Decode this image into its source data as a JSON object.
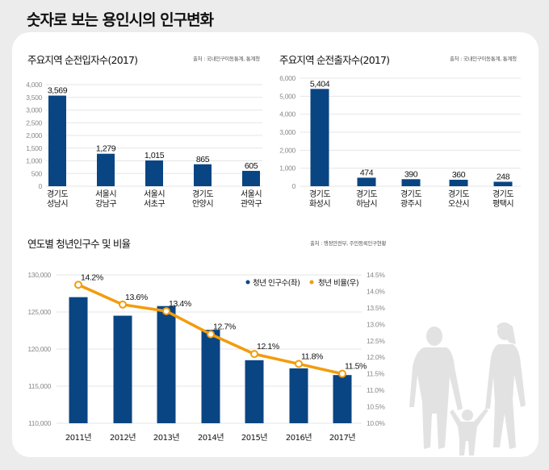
{
  "page": {
    "title": "숫자로 보는 용인시의 인구변화"
  },
  "colors": {
    "bar": "#0a4583",
    "line": "#f29c0c",
    "grid": "#e6e6e6",
    "background": "#ececec",
    "card": "#ffffff",
    "silhouette": "#e2e2e2"
  },
  "chart_data": [
    {
      "type": "bar",
      "title": "주요지역 순전입자수(2017)",
      "source": "출처 : 국내인구이동통계, 통계청",
      "categories": [
        [
          "경기도",
          "성남시"
        ],
        [
          "서울시",
          "강남구"
        ],
        [
          "서울시",
          "서초구"
        ],
        [
          "경기도",
          "안양시"
        ],
        [
          "서울시",
          "관악구"
        ]
      ],
      "values": [
        3569,
        1279,
        1015,
        865,
        605
      ],
      "value_labels": [
        "3,569",
        "1,279",
        "1,015",
        "865",
        "605"
      ],
      "yticks": [
        "0",
        "500",
        "1,000",
        "1,500",
        "2,000",
        "2,500",
        "3,000",
        "3,500",
        "4,000"
      ],
      "ytick_values": [
        0,
        500,
        1000,
        1500,
        2000,
        2500,
        3000,
        3500,
        4000
      ],
      "ylim": [
        0,
        4000
      ],
      "grid": true,
      "xlabel": "",
      "ylabel": ""
    },
    {
      "type": "bar",
      "title": "주요지역 순전출자수(2017)",
      "source": "출처 : 국내인구이동통계, 통계청",
      "categories": [
        [
          "경기도",
          "화성시"
        ],
        [
          "경기도",
          "하남시"
        ],
        [
          "경기도",
          "광주시"
        ],
        [
          "경기도",
          "오산시"
        ],
        [
          "경기도",
          "평택시"
        ]
      ],
      "values": [
        5404,
        474,
        390,
        360,
        248
      ],
      "value_labels": [
        "5,404",
        "474",
        "390",
        "360",
        "248"
      ],
      "yticks": [
        "0",
        "1,000",
        "2,000",
        "3,000",
        "4,000",
        "5,000",
        "6,000"
      ],
      "ytick_values": [
        0,
        1000,
        2000,
        3000,
        4000,
        5000,
        6000
      ],
      "ylim": [
        0,
        6000
      ],
      "grid": true,
      "xlabel": "",
      "ylabel": ""
    },
    {
      "type": "bar+line",
      "title": "연도별 청년인구수 및 비율",
      "source": "출처 : 행정안전부, 주민등록인구현황",
      "categories": [
        "2011년",
        "2012년",
        "2013년",
        "2014년",
        "2015년",
        "2016년",
        "2017년"
      ],
      "series": [
        {
          "name": "청년 인구수(좌)",
          "type": "bar",
          "axis": "left",
          "values": [
            127000,
            124500,
            125800,
            122600,
            118500,
            117400,
            116500
          ]
        },
        {
          "name": "청년 비율(우)",
          "type": "line",
          "axis": "right",
          "values": [
            14.2,
            13.6,
            13.4,
            12.7,
            12.1,
            11.8,
            11.5
          ],
          "value_labels": [
            "14.2%",
            "13.6%",
            "13.4%",
            "12.7%",
            "12.1%",
            "11.8%",
            "11.5%"
          ]
        }
      ],
      "left_axis": {
        "ticks": [
          "110,000",
          "115,000",
          "120,000",
          "125,000",
          "130,000"
        ],
        "tick_values": [
          110000,
          115000,
          120000,
          125000,
          130000
        ],
        "ylim": [
          110000,
          130000
        ]
      },
      "right_axis": {
        "ticks": [
          "10.0%",
          "10.5%",
          "11.0%",
          "11.5%",
          "12.0%",
          "12.5%",
          "13.0%",
          "13.5%",
          "14.0%",
          "14.5%"
        ],
        "tick_values": [
          10.0,
          10.5,
          11.0,
          11.5,
          12.0,
          12.5,
          13.0,
          13.5,
          14.0,
          14.5
        ],
        "ylim": [
          10.0,
          14.5
        ]
      },
      "legend": {
        "position": "top-right",
        "items": [
          "청년 인구수(좌)",
          "청년 비율(우)"
        ]
      },
      "grid": true,
      "xlabel": "",
      "ylabel": ""
    }
  ]
}
